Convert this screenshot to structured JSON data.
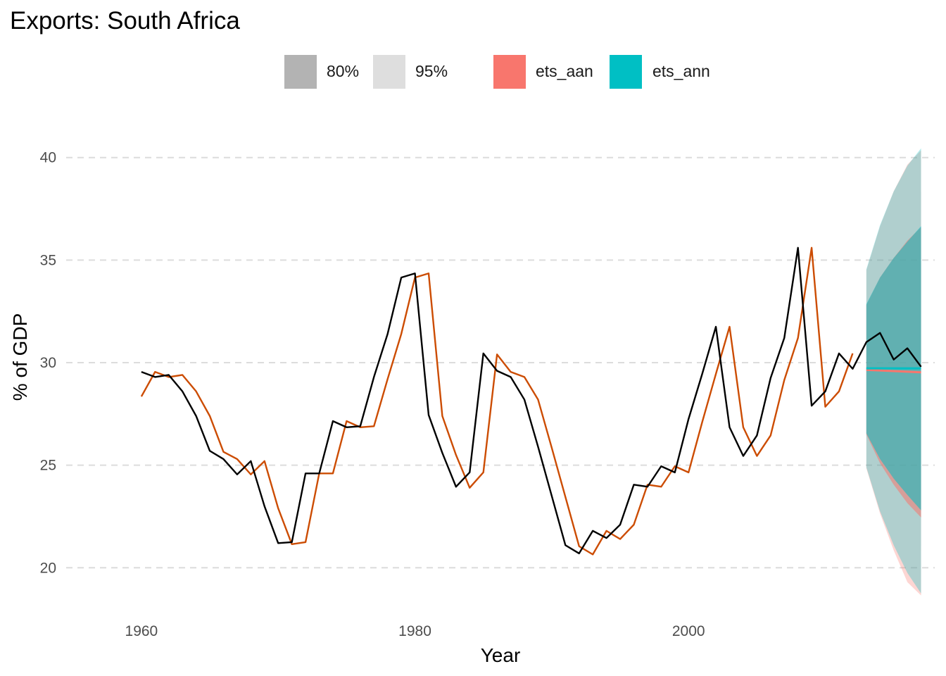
{
  "chart_data": {
    "type": "line",
    "title": "Exports: South Africa",
    "xlabel": "Year",
    "ylabel": "% of GDP",
    "xlim": [
      1954.5,
      2018
    ],
    "ylim": [
      18.5,
      41.5
    ],
    "x_ticks": [
      1960,
      1980,
      2000
    ],
    "y_ticks": [
      20,
      25,
      30,
      35,
      40
    ],
    "grid": "horizontal dashed major lines",
    "legend_position": "top",
    "legend": {
      "level_keys": [
        {
          "label": "80%",
          "color": "#b3b3b3"
        },
        {
          "label": "95%",
          "color": "#dedede"
        }
      ],
      "model_keys": [
        {
          "label": "ets_aan",
          "color": "#f8766d"
        },
        {
          "label": "ets_ann",
          "color": "#00bfc4"
        }
      ]
    },
    "observed": {
      "color": "#000000",
      "x": [
        1960,
        1961,
        1962,
        1963,
        1964,
        1965,
        1966,
        1967,
        1968,
        1969,
        1970,
        1971,
        1972,
        1973,
        1974,
        1975,
        1976,
        1977,
        1978,
        1979,
        1980,
        1981,
        1982,
        1983,
        1984,
        1985,
        1986,
        1987,
        1988,
        1989,
        1990,
        1991,
        1992,
        1993,
        1994,
        1995,
        1996,
        1997,
        1998,
        1999,
        2000,
        2001,
        2002,
        2003,
        2004,
        2005,
        2006,
        2007,
        2008,
        2009,
        2010,
        2011,
        2012,
        2013,
        2014,
        2015,
        2016,
        2017
      ],
      "y": [
        29.55,
        29.3,
        29.4,
        28.6,
        27.4,
        25.7,
        25.3,
        24.55,
        25.2,
        23.0,
        21.2,
        21.25,
        24.6,
        24.6,
        27.15,
        26.85,
        26.9,
        29.3,
        31.4,
        34.15,
        34.35,
        27.45,
        25.6,
        23.95,
        24.65,
        30.45,
        29.6,
        29.3,
        28.2,
        25.9,
        23.5,
        21.1,
        20.7,
        21.8,
        21.45,
        22.1,
        24.05,
        23.95,
        24.95,
        24.65,
        27.25,
        29.45,
        31.75,
        26.85,
        25.45,
        26.45,
        29.25,
        31.2,
        35.6,
        27.9,
        28.6,
        30.45,
        29.7,
        31.0,
        31.45,
        30.15,
        30.7,
        29.8
      ]
    },
    "fitted": {
      "color": "#cc4c02",
      "x": [
        1960,
        1961,
        1962,
        1963,
        1964,
        1965,
        1966,
        1967,
        1968,
        1969,
        1970,
        1971,
        1972,
        1973,
        1974,
        1975,
        1976,
        1977,
        1978,
        1979,
        1980,
        1981,
        1982,
        1983,
        1984,
        1985,
        1986,
        1987,
        1988,
        1989,
        1990,
        1991,
        1992,
        1993,
        1994,
        1995,
        1996,
        1997,
        1998,
        1999,
        2000,
        2001,
        2002,
        2003,
        2004,
        2005,
        2006,
        2007,
        2008,
        2009,
        2010,
        2011,
        2012
      ],
      "y": [
        28.35,
        29.55,
        29.3,
        29.4,
        28.6,
        27.4,
        25.65,
        25.3,
        24.55,
        25.2,
        22.9,
        21.15,
        21.25,
        24.6,
        24.6,
        27.15,
        26.85,
        26.9,
        29.2,
        31.4,
        34.15,
        34.35,
        27.4,
        25.5,
        23.9,
        24.65,
        30.4,
        29.55,
        29.3,
        28.2,
        25.85,
        23.45,
        21.05,
        20.65,
        21.8,
        21.4,
        22.1,
        24.05,
        23.95,
        24.95,
        24.65,
        27.1,
        29.45,
        31.75,
        26.85,
        25.45,
        26.45,
        29.15,
        31.2,
        35.6,
        27.85,
        28.6,
        30.45
      ]
    },
    "forecast": {
      "x": [
        2013,
        2014,
        2015,
        2016,
        2017
      ],
      "ets_ann": {
        "color": "#00bfc4",
        "mean": [
          29.72,
          29.72,
          29.72,
          29.72,
          29.72
        ],
        "lo80": [
          26.55,
          25.3,
          24.35,
          23.55,
          22.8
        ],
        "hi80": [
          32.85,
          34.15,
          35.1,
          35.9,
          36.65
        ],
        "lo95": [
          24.9,
          22.75,
          21.1,
          19.75,
          18.75
        ],
        "hi95": [
          34.55,
          36.7,
          38.35,
          39.6,
          40.45
        ]
      },
      "ets_aan": {
        "color": "#f8766d",
        "mean": [
          29.65,
          29.62,
          29.59,
          29.56,
          29.53
        ],
        "lo80": [
          26.5,
          25.1,
          24.05,
          23.15,
          22.45
        ],
        "hi80": [
          32.8,
          34.15,
          35.1,
          35.95,
          36.6
        ],
        "lo95": [
          24.85,
          22.65,
          20.85,
          19.3,
          18.65
        ],
        "hi95": [
          34.5,
          36.65,
          38.35,
          39.65,
          40.35
        ]
      }
    }
  }
}
